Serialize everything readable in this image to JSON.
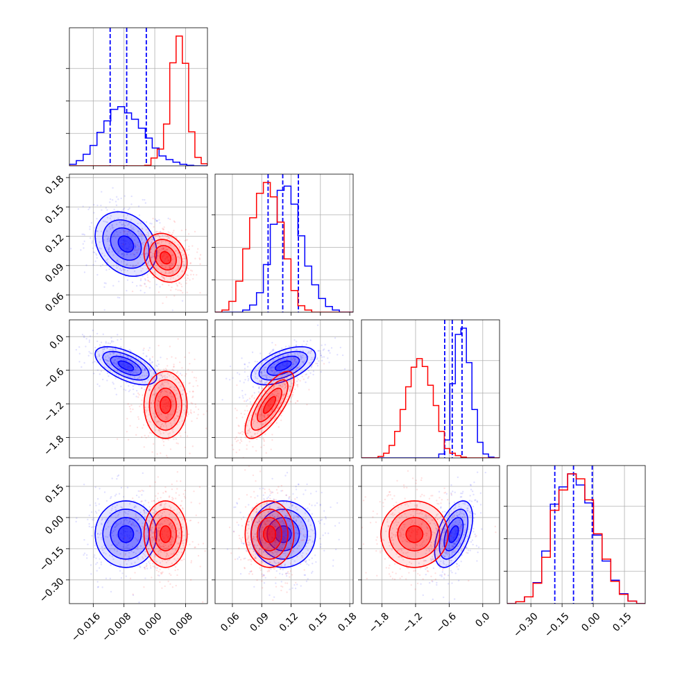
{
  "chart_data": {
    "type": "corner",
    "parameters": [
      {
        "ticks": [
          -0.016,
          -0.008,
          0.0,
          0.008
        ],
        "tick_labels": [
          "−0.016",
          "−0.008",
          "0.000",
          "0.008"
        ],
        "range": [
          -0.0222,
          0.0137
        ]
      },
      {
        "ticks": [
          0.06,
          0.09,
          0.12,
          0.15,
          0.18
        ],
        "tick_labels": [
          "0.06",
          "0.09",
          "0.12",
          "0.15",
          "0.18"
        ],
        "range": [
          0.0423,
          0.1835
        ]
      },
      {
        "ticks": [
          -1.8,
          -1.2,
          -0.6,
          0.0
        ],
        "tick_labels": [
          "−1.8",
          "−1.2",
          "−0.6",
          "0.0"
        ],
        "range": [
          -2.166,
          0.3
        ]
      },
      {
        "ticks": [
          -0.3,
          -0.15,
          0.0,
          0.15
        ],
        "tick_labels": [
          "−0.30",
          "−0.15",
          "0.00",
          "0.15"
        ],
        "range": [
          -0.414,
          0.25
        ]
      }
    ],
    "series": [
      {
        "color": "#0000ff",
        "means": [
          -0.0075,
          0.112,
          -0.52,
          -0.08
        ],
        "stds": [
          0.004,
          0.0165,
          0.17,
          0.08
        ],
        "corr": [
          [
            0,
            1,
            -0.25
          ],
          [
            0,
            2,
            -0.6
          ],
          [
            1,
            2,
            0.55
          ],
          [
            2,
            3,
            0.5
          ]
        ],
        "quantile_lines": [
          [
            -0.0116,
            -0.0073,
            -0.0022
          ],
          [
            0.0965,
            0.1115,
            0.1275
          ],
          [
            -0.68,
            -0.545,
            -0.37
          ],
          [
            -0.185,
            -0.095,
            -0.005
          ]
        ],
        "histograms": [
          [
            0.3,
            1.0,
            2.2,
            3.9,
            6.4,
            8.6,
            10.8,
            11.3,
            10.1,
            8.9,
            7.2,
            5.3,
            3.4,
            1.9,
            1.2,
            0.7,
            0.3,
            0.1,
            0,
            0
          ],
          [
            0,
            0,
            0,
            0,
            0.3,
            1.0,
            2.7,
            6.6,
            12.2,
            16.9,
            17.5,
            15.0,
            10.6,
            6.4,
            3.8,
            1.9,
            0.8,
            0.3,
            0,
            0
          ],
          [
            0,
            0,
            0,
            0,
            0,
            0,
            0,
            0,
            0,
            0,
            0,
            0,
            0,
            0,
            0.5,
            2.3,
            9.5,
            15.8,
            16.6,
            12.2,
            6.2,
            2.0,
            0.5,
            0.1,
            0
          ],
          [
            0,
            0.3,
            1.1,
            3.4,
            8.5,
            16.1,
            18.9,
            21.0,
            19.2,
            16.3,
            11.1,
            6.9,
            3.8,
            1.6,
            0.4,
            0
          ]
        ]
      },
      {
        "color": "#ff0000",
        "means": [
          0.0028,
          0.098,
          -1.22,
          -0.08
        ],
        "stds": [
          0.0028,
          0.0125,
          0.3,
          0.08
        ],
        "corr": [
          [
            0,
            1,
            -0.2
          ],
          [
            1,
            2,
            0.75
          ]
        ],
        "quantile_lines": null,
        "histograms": [
          [
            0,
            0,
            0,
            0,
            0,
            0,
            0,
            0,
            0,
            0,
            0,
            0,
            0.1,
            1.5,
            3.2,
            8.0,
            19.7,
            24.8,
            19.6,
            6.5,
            1.6,
            0.4
          ],
          [
            0,
            0.3,
            1.5,
            4.3,
            8.8,
            13.1,
            16.5,
            18.0,
            16.0,
            12.5,
            7.4,
            3.0,
            0.9,
            0.3,
            0,
            0,
            0,
            0,
            0,
            0
          ],
          [
            0,
            0,
            0,
            0.2,
            0.6,
            1.6,
            3.4,
            6.2,
            9.1,
            11.6,
            12.7,
            11.7,
            9.3,
            6.7,
            3.4,
            1.2,
            0.6,
            0.3,
            0.1,
            0,
            0,
            0,
            0,
            0,
            0
          ],
          [
            0,
            0.3,
            1.1,
            3.3,
            7.5,
            15.1,
            18.4,
            21.0,
            20.2,
            16.8,
            11.3,
            7.2,
            3.6,
            1.5,
            0.4,
            0
          ]
        ]
      }
    ],
    "contour_levels_sigma": [
      0.5,
      1.0,
      1.5,
      2.0
    ],
    "grid": true
  }
}
